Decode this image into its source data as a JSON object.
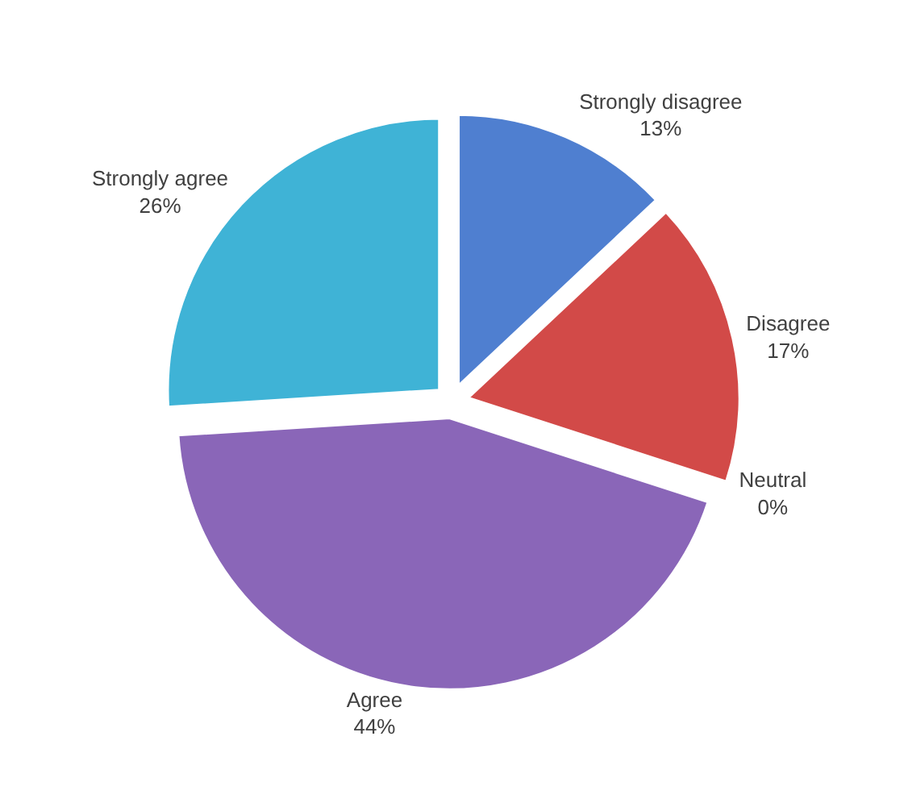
{
  "chart_data": {
    "type": "pie",
    "categories": [
      "Strongly disagree",
      "Disagree",
      "Neutral",
      "Agree",
      "Strongly agree"
    ],
    "values": [
      13,
      17,
      0,
      44,
      26
    ],
    "value_labels": [
      "13%",
      "17%",
      "0%",
      "44%",
      "26%"
    ],
    "colors": [
      "#4f7fd0",
      "#d24a48",
      "#9bbb59",
      "#8a66b8",
      "#3fb3d6"
    ],
    "legend": false
  }
}
